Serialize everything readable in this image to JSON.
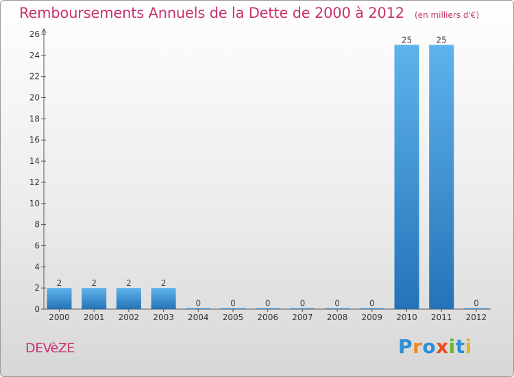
{
  "chart_data": {
    "type": "bar",
    "title": "Remboursements Annuels de la Dette de 2000 à 2012",
    "subtitle": "(en milliers d'€)",
    "categories": [
      "2000",
      "2001",
      "2002",
      "2003",
      "2004",
      "2005",
      "2006",
      "2007",
      "2008",
      "2009",
      "2010",
      "2011",
      "2012"
    ],
    "values": [
      2,
      2,
      2,
      2,
      0,
      0,
      0,
      0,
      0,
      0,
      25,
      25,
      0
    ],
    "data_labels": [
      "2",
      "2",
      "2",
      "2",
      "0",
      "0",
      "0",
      "0",
      "0",
      "0",
      "25",
      "25",
      "0"
    ],
    "ylim": [
      0,
      26
    ],
    "yticks": [
      0,
      2,
      4,
      6,
      8,
      10,
      12,
      14,
      16,
      18,
      20,
      22,
      24,
      26
    ],
    "grid": false,
    "bar_color": "#3a8fd8",
    "text_color": "#c8336e"
  },
  "commune": "DEVèZE",
  "logo": {
    "letters": [
      "P",
      "r",
      "o",
      "x",
      "i",
      "t",
      "i"
    ],
    "colors": [
      "#2a8fd6",
      "#f08a1a",
      "#2a8fd6",
      "#e84c1a",
      "#6ab42a",
      "#2a8fd6",
      "#f0b01a"
    ]
  }
}
